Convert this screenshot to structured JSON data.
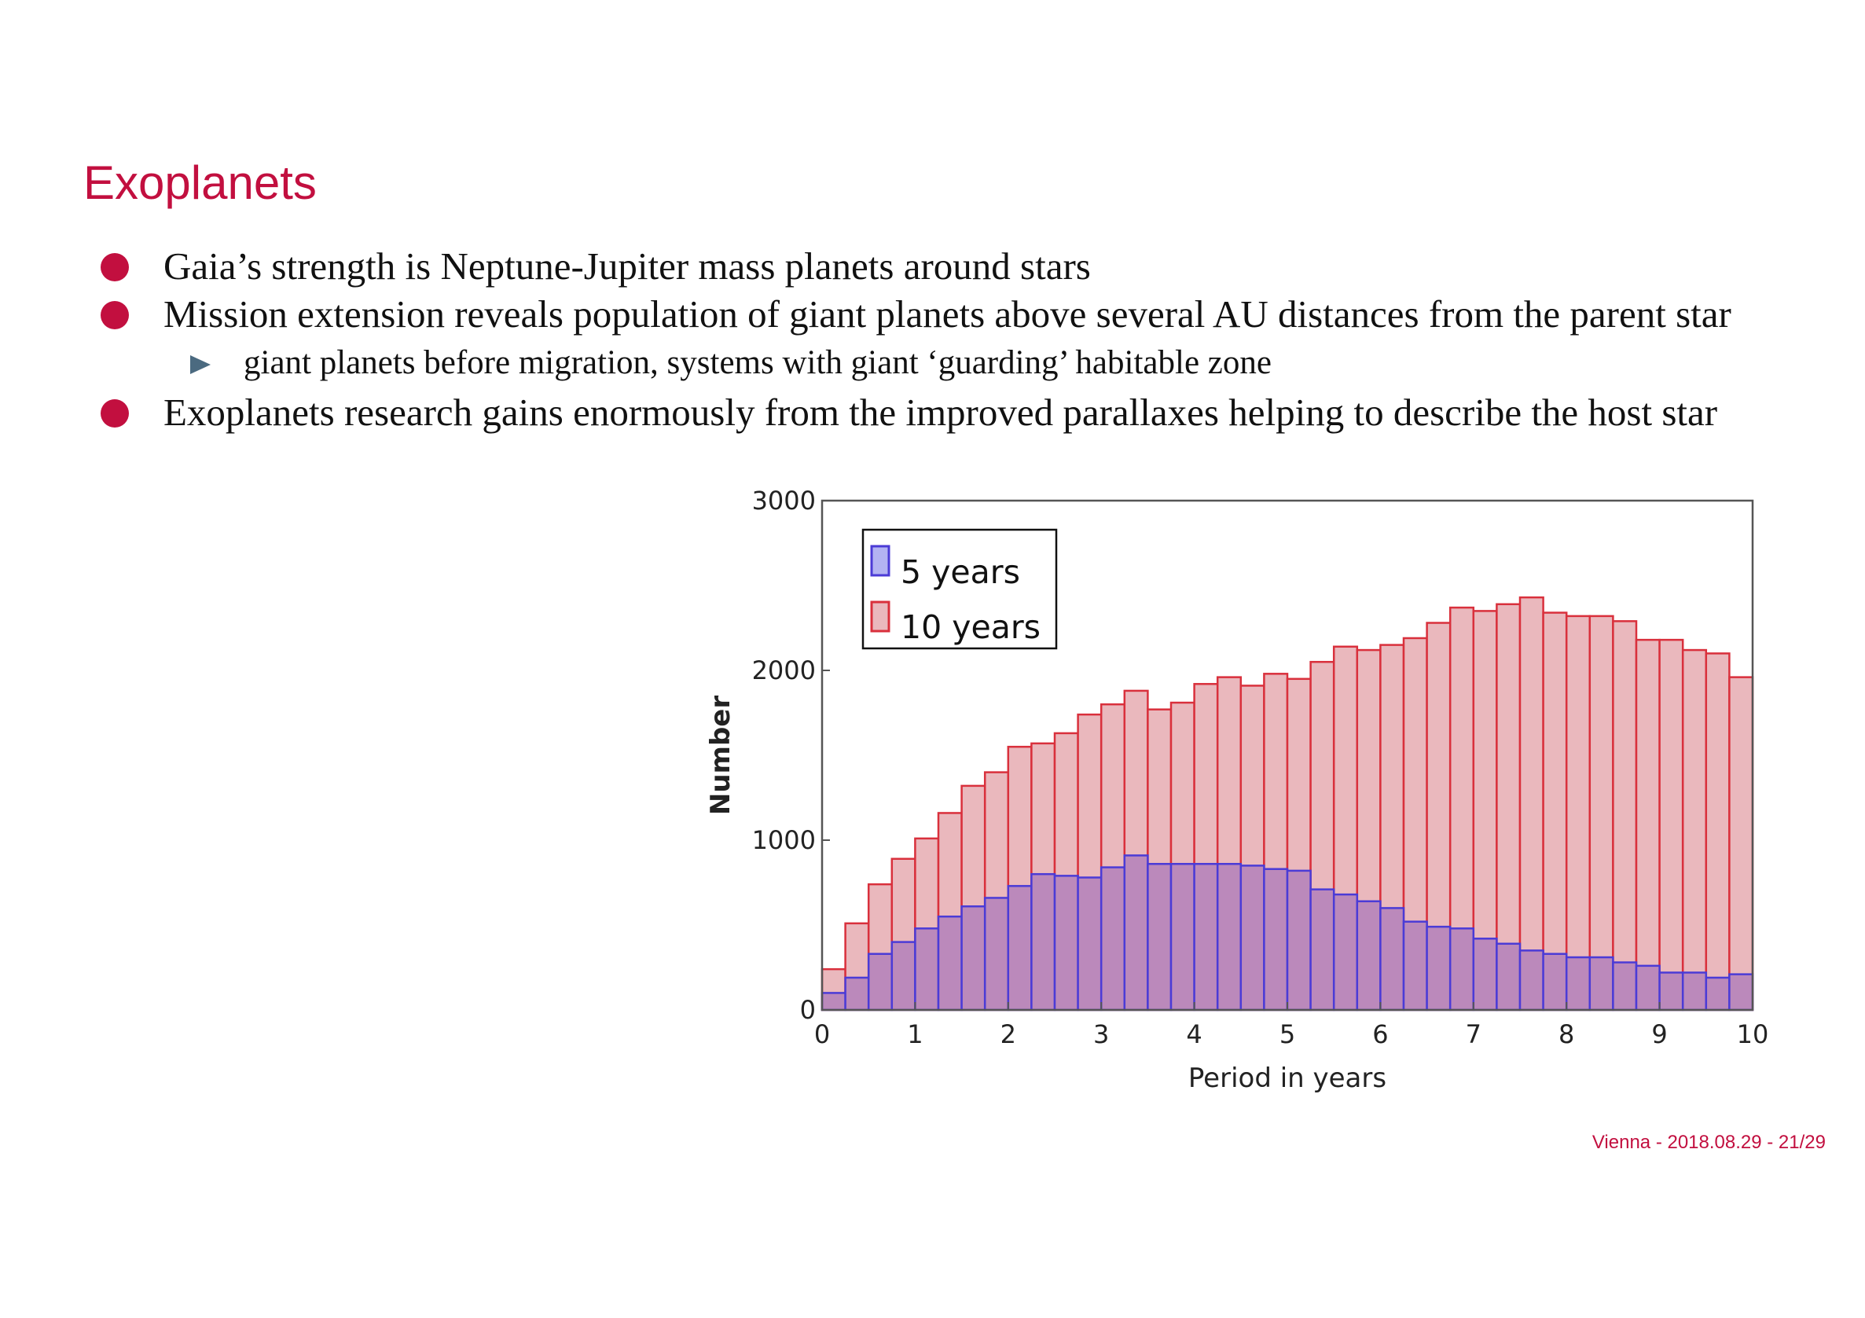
{
  "slide": {
    "title": "Exoplanets",
    "footer": "Vienna - 2018.08.29 - 21/29",
    "bullets": [
      {
        "level": 1,
        "text": "Gaia’s strength is Neptune-Jupiter mass planets around stars"
      },
      {
        "level": 1,
        "text": "Mission extension reveals population of giant planets above several AU distances from the parent star"
      },
      {
        "level": 2,
        "text": "giant planets before migration, systems with giant ‘guarding’ habitable zone"
      },
      {
        "level": 1,
        "text": "Exoplanets research gains enormously from the improved parallaxes helping to describe the host star"
      }
    ],
    "colors": {
      "accent": "#c20f3f",
      "sub_bullet": "#4b6a80"
    }
  },
  "chart_data": {
    "type": "bar",
    "xlabel": "Period in years",
    "ylabel": "Number",
    "xlim": [
      0,
      10
    ],
    "ylim": [
      0,
      3000
    ],
    "xticks": [
      0,
      1,
      2,
      3,
      4,
      5,
      6,
      7,
      8,
      9,
      10
    ],
    "yticks": [
      0,
      1000,
      2000,
      3000
    ],
    "bin_width": 0.25,
    "bin_starts": [
      0,
      0.25,
      0.5,
      0.75,
      1,
      1.25,
      1.5,
      1.75,
      2,
      2.25,
      2.5,
      2.75,
      3,
      3.25,
      3.5,
      3.75,
      4,
      4.25,
      4.5,
      4.75,
      5,
      5.25,
      5.5,
      5.75,
      6,
      6.25,
      6.5,
      6.75,
      7,
      7.25,
      7.5,
      7.75,
      8,
      8.25,
      8.5,
      8.75,
      9,
      9.25,
      9.5,
      9.75
    ],
    "legend_position": "top-left",
    "series": [
      {
        "name": "10 years",
        "fill": "#eab8bd",
        "edge": "#d9303c",
        "values": [
          240,
          510,
          740,
          890,
          1010,
          1160,
          1320,
          1400,
          1550,
          1570,
          1630,
          1740,
          1800,
          1880,
          1770,
          1810,
          1920,
          1960,
          1910,
          1980,
          1950,
          2050,
          2140,
          2120,
          2150,
          2190,
          2280,
          2370,
          2350,
          2390,
          2430,
          2340,
          2320,
          2320,
          2290,
          2180,
          2180,
          2120,
          2100,
          1960
        ]
      },
      {
        "name": "5 years",
        "fill": "#bb89bb",
        "edge": "#4b3bd6",
        "legend_fill": "#b3b3f2",
        "values": [
          100,
          190,
          330,
          400,
          480,
          550,
          610,
          660,
          730,
          800,
          790,
          780,
          840,
          910,
          860,
          860,
          860,
          860,
          850,
          830,
          820,
          710,
          680,
          640,
          600,
          520,
          490,
          480,
          420,
          390,
          350,
          330,
          310,
          310,
          280,
          260,
          220,
          220,
          190,
          210
        ]
      }
    ]
  }
}
